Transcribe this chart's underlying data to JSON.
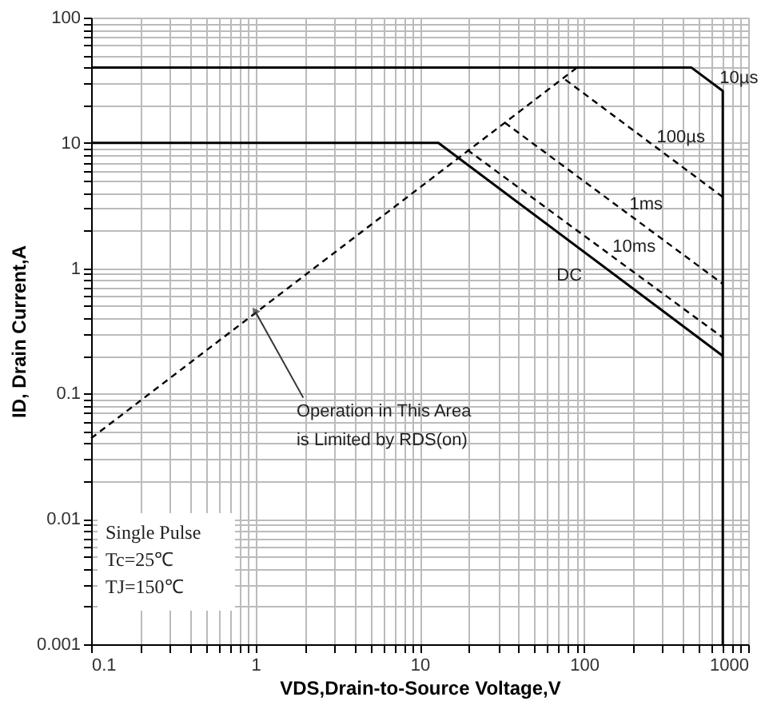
{
  "chart_data": {
    "type": "line",
    "xlabel": "VDS,Drain-to-Source Voltage,V",
    "ylabel": "ID, Drain Current,A",
    "log": "xy",
    "grid": true,
    "xlim": [
      0.1,
      1000
    ],
    "ylim": [
      0.001,
      100
    ],
    "xticks": [
      0.1,
      {
        "value": 0.2,
        "label": null
      },
      {
        "value": 0.3,
        "label": null
      },
      {
        "value": 0.4,
        "label": null
      },
      {
        "value": 0.5,
        "label": null
      },
      {
        "value": 0.6,
        "label": null
      },
      {
        "value": 0.7,
        "label": null
      },
      {
        "value": 0.8,
        "label": null
      },
      {
        "value": 0.9,
        "label": null
      },
      1,
      {
        "value": 2,
        "label": null
      },
      {
        "value": 3,
        "label": null
      },
      {
        "value": 4,
        "label": null
      },
      {
        "value": 5,
        "label": null
      },
      {
        "value": 6,
        "label": null
      },
      {
        "value": 7,
        "label": null
      },
      {
        "value": 8,
        "label": null
      },
      {
        "value": 9,
        "label": null
      },
      10,
      {
        "value": 20,
        "label": null
      },
      {
        "value": 30,
        "label": null
      },
      {
        "value": 40,
        "label": null
      },
      {
        "value": 50,
        "label": null
      },
      {
        "value": 60,
        "label": null
      },
      {
        "value": 70,
        "label": null
      },
      {
        "value": 80,
        "label": null
      },
      {
        "value": 90,
        "label": null
      },
      100,
      {
        "value": 200,
        "label": null
      },
      {
        "value": 300,
        "label": null
      },
      {
        "value": 400,
        "label": null
      },
      {
        "value": 500,
        "label": null
      },
      {
        "value": 600,
        "label": null
      },
      {
        "value": 700,
        "label": null
      },
      {
        "value": 800,
        "label": null
      },
      {
        "value": 900,
        "label": null
      },
      1000
    ],
    "yticks": [
      0.001,
      {
        "value": 0.002,
        "label": null
      },
      {
        "value": 0.003,
        "label": null
      },
      {
        "value": 0.004,
        "label": null
      },
      {
        "value": 0.005,
        "label": null
      },
      {
        "value": 0.006,
        "label": null
      },
      {
        "value": 0.007,
        "label": null
      },
      {
        "value": 0.008,
        "label": null
      },
      {
        "value": 0.009,
        "label": null
      },
      0.01,
      {
        "value": 0.02,
        "label": null
      },
      {
        "value": 0.03,
        "label": null
      },
      {
        "value": 0.04,
        "label": null
      },
      {
        "value": 0.05,
        "label": null
      },
      {
        "value": 0.06,
        "label": null
      },
      {
        "value": 0.07,
        "label": null
      },
      {
        "value": 0.08,
        "label": null
      },
      {
        "value": 0.09,
        "label": null
      },
      0.1,
      {
        "value": 0.2,
        "label": null
      },
      {
        "value": 0.3,
        "label": null
      },
      {
        "value": 0.4,
        "label": null
      },
      {
        "value": 0.5,
        "label": null
      },
      {
        "value": 0.6,
        "label": null
      },
      {
        "value": 0.7,
        "label": null
      },
      {
        "value": 0.8,
        "label": null
      },
      {
        "value": 0.9,
        "label": null
      },
      1,
      {
        "value": 2,
        "label": null
      },
      {
        "value": 3,
        "label": null
      },
      {
        "value": 4,
        "label": null
      },
      {
        "value": 5,
        "label": null
      },
      {
        "value": 6,
        "label": null
      },
      {
        "value": 7,
        "label": null
      },
      {
        "value": 8,
        "label": null
      },
      {
        "value": 9,
        "label": null
      },
      10,
      {
        "value": 20,
        "label": null
      },
      {
        "value": 30,
        "label": null
      },
      {
        "value": 40,
        "label": null
      },
      {
        "value": 50,
        "label": null
      },
      {
        "value": 60,
        "label": null
      },
      {
        "value": 70,
        "label": null
      },
      {
        "value": 80,
        "label": null
      },
      {
        "value": 90,
        "label": null
      },
      100
    ],
    "series": [
      {
        "name": "10µs",
        "color": "#000000",
        "line_style": "solid",
        "x": [
          0.1,
          450,
          700,
          700
        ],
        "values": [
          40,
          40,
          26,
          0.001
        ]
      },
      {
        "name": "100µs",
        "color": "#000000",
        "line_style": "dashed",
        "x": [
          77,
          700
        ],
        "values": [
          32,
          3.7
        ]
      },
      {
        "name": "1ms",
        "color": "#000000",
        "line_style": "dashed",
        "x": [
          33,
          700
        ],
        "values": [
          14.5,
          0.75
        ]
      },
      {
        "name": "10ms",
        "color": "#000000",
        "line_style": "dashed",
        "x": [
          19.5,
          700
        ],
        "values": [
          8.8,
          0.28
        ]
      },
      {
        "name": "DC",
        "color": "#000000",
        "line_style": "solid",
        "x": [
          0.1,
          13,
          700
        ],
        "values": [
          10,
          10,
          0.2
        ]
      },
      {
        "color": "#000000",
        "line_style": "dashed",
        "x": [
          0.1,
          91
        ],
        "values": [
          0.044,
          40
        ]
      }
    ],
    "annotations": [
      {
        "text": "Operation in This Area\nis Limited by RDS(on)",
        "x": 1,
        "y": 0.45
      },
      "Single Pulse",
      "Tc=25℃",
      "TJ=150℃"
    ]
  }
}
